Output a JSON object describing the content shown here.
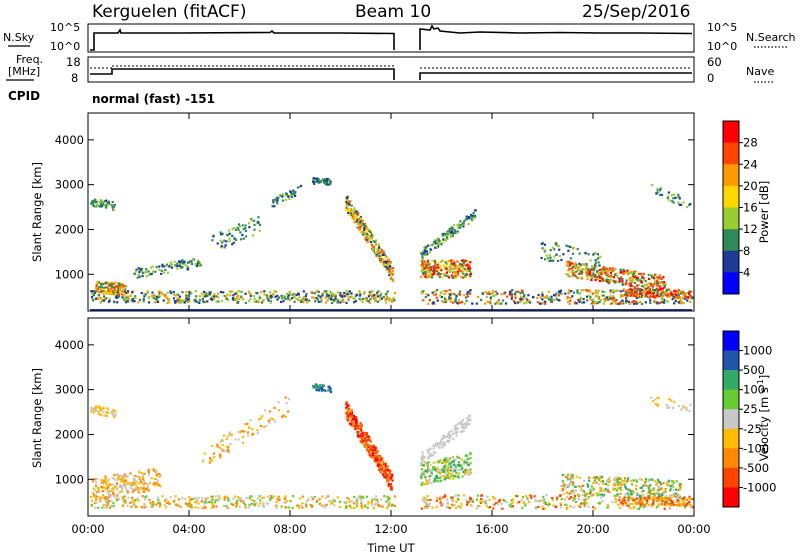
{
  "header": {
    "station": "Kerguelen (fitACF)",
    "beam": "Beam 10",
    "date": "25/Sep/2016"
  },
  "top_panel": {
    "left_label": "N.Sky",
    "left_ticks": [
      "10^5",
      "10^0"
    ],
    "right_label": "N.Search",
    "right_ticks": [
      "10^5",
      "10^0"
    ]
  },
  "freq_panel": {
    "left_label_1": "Freq.",
    "left_label_2": "[MHz]",
    "left_ticks": [
      "18",
      "8"
    ],
    "right_label": "Nave",
    "right_ticks": [
      "60",
      "0"
    ]
  },
  "cpid": {
    "label": "CPID",
    "value": "normal (fast) -151"
  },
  "colorbars": {
    "power": {
      "title": "Power [dB]",
      "ticks": [
        "28",
        "24",
        "20",
        "16",
        "12",
        "8",
        "4"
      ],
      "colors": [
        "#ff0000",
        "#ff4500",
        "#ff9900",
        "#ffd700",
        "#9acd32",
        "#2e8b57",
        "#1e3c96",
        "#0000ff"
      ]
    },
    "velocity": {
      "title": "Velocity [m s",
      "title_sup": "-1",
      "title_end": "]",
      "ticks": [
        "1000",
        "500",
        "100",
        "25",
        "-25",
        "-100",
        "-500",
        "-1000"
      ],
      "colors": [
        "#0000ff",
        "#2255aa",
        "#33aa66",
        "#66cc33",
        "#c8c8c8",
        "#ffbb00",
        "#ff8800",
        "#ff4400",
        "#ff0000"
      ]
    }
  },
  "chart_data": [
    {
      "type": "heatmap",
      "quantity": "Power [dB]",
      "ylabel": "Slant Range [km]",
      "y_ticks": [
        "4000",
        "3000",
        "2000",
        "1000"
      ],
      "ylim": [
        180,
        4600
      ],
      "x_ticks": [
        "00:00",
        "04:00",
        "08:00",
        "12:00",
        "16:00",
        "20:00",
        "00:00"
      ],
      "xlim": [
        "00:00",
        "24:00"
      ]
    },
    {
      "type": "heatmap",
      "quantity": "Velocity [m s-1]",
      "ylabel": "Slant Range [km]",
      "y_ticks": [
        "4000",
        "3000",
        "2000",
        "1000"
      ],
      "ylim": [
        180,
        4600
      ],
      "x_ticks": [
        "00:00",
        "04:00",
        "08:00",
        "12:00",
        "16:00",
        "20:00",
        "00:00"
      ],
      "xlim": [
        "00:00",
        "24:00"
      ],
      "xlabel": "Time UT"
    }
  ]
}
